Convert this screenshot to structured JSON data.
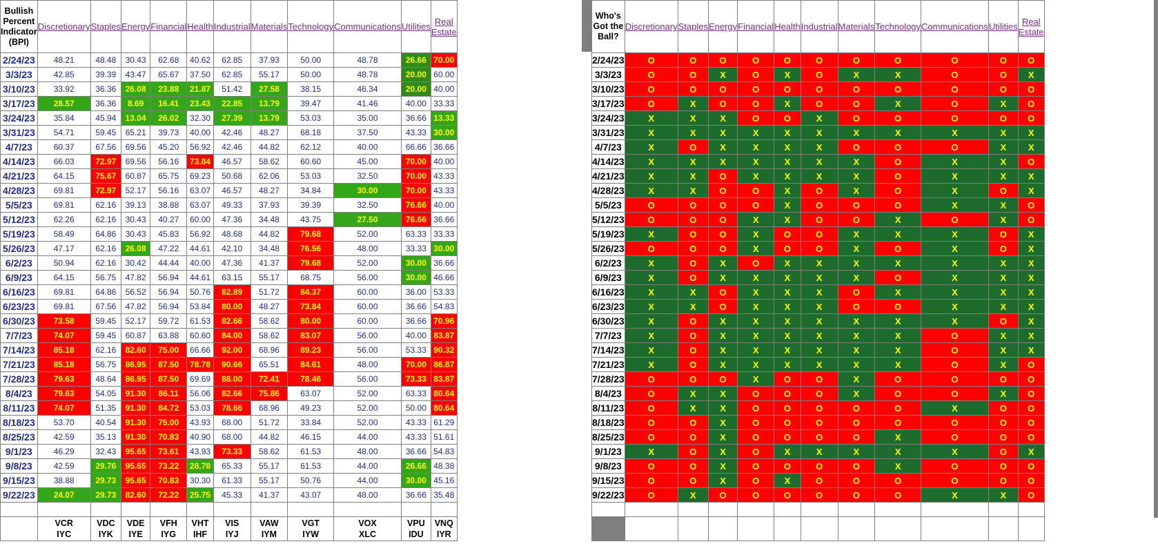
{
  "left": {
    "corner": "Bullish Percent Indicator (BPI)",
    "headers": [
      "Discretionary",
      "Staples",
      "Energy",
      "Financial",
      "Health",
      "Industrial",
      "Materials",
      "Technology",
      "Communications",
      "Utilities",
      "Real Estate"
    ],
    "widths": [
      81,
      87,
      64,
      65,
      60,
      64,
      65,
      75,
      112,
      60,
      55
    ],
    "date_width": 80,
    "tickers1": [
      "VCR",
      "VDC",
      "VDE",
      "VFH",
      "VHT",
      "VIS",
      "VAW",
      "VGT",
      "VOX",
      "VPU",
      "VNQ"
    ],
    "tickers2": [
      "IYC",
      "IYK",
      "IYE",
      "IYG",
      "IHF",
      "IYJ",
      "IYM",
      "IYW",
      "XLC",
      "IDU",
      "IYR"
    ],
    "rows": [
      {
        "d": "2/24/23",
        "v": [
          "48.21",
          "48.48",
          "30.43",
          "62.68",
          "40.62",
          "62.85",
          "37.93",
          "50.00",
          "48.78",
          "26.66",
          "70.00"
        ],
        "c": [
          "",
          "",
          "",
          "",
          "",
          "",
          "",
          "",
          "",
          "g",
          "r"
        ]
      },
      {
        "d": "3/3/23",
        "v": [
          "42.85",
          "39.39",
          "43.47",
          "65.67",
          "37.50",
          "62.85",
          "55.17",
          "50.00",
          "48.78",
          "20.00",
          "60.00"
        ],
        "c": [
          "",
          "",
          "",
          "",
          "",
          "",
          "",
          "",
          "",
          "g",
          ""
        ]
      },
      {
        "d": "3/10/23",
        "v": [
          "33.92",
          "36.36",
          "26.08",
          "23.88",
          "21.87",
          "51.42",
          "27.58",
          "38.15",
          "46.34",
          "20.00",
          "40.00"
        ],
        "c": [
          "",
          "",
          "lg",
          "lg",
          "lg",
          "",
          "lg",
          "",
          "",
          "g",
          ""
        ]
      },
      {
        "d": "3/17/23",
        "v": [
          "28.57",
          "36.36",
          "8.69",
          "16.41",
          "23.43",
          "22.85",
          "13.79",
          "39.47",
          "41.46",
          "40.00",
          "33.33"
        ],
        "c": [
          "lg",
          "",
          "lg",
          "lg",
          "lg",
          "lg",
          "lg",
          "",
          "",
          "",
          ""
        ]
      },
      {
        "d": "3/24/23",
        "v": [
          "35.84",
          "45.94",
          "13.04",
          "26.02",
          "32.30",
          "27.39",
          "13.79",
          "53.03",
          "35.00",
          "36.66",
          "13.33"
        ],
        "c": [
          "",
          "",
          "lg",
          "lg",
          "",
          "lg",
          "lg",
          "",
          "",
          "",
          "lg"
        ]
      },
      {
        "d": "3/31/23",
        "v": [
          "54.71",
          "59.45",
          "65.21",
          "39.73",
          "40.00",
          "42.46",
          "48.27",
          "68.18",
          "37.50",
          "43.33",
          "30.00"
        ],
        "c": [
          "",
          "",
          "",
          "",
          "",
          "",
          "",
          "",
          "",
          "",
          "lg"
        ]
      },
      {
        "d": "4/7/23",
        "v": [
          "60.37",
          "67.56",
          "69.56",
          "45.20",
          "56.92",
          "42.46",
          "44.82",
          "62.12",
          "40.00",
          "66.66",
          "36.66"
        ],
        "c": [
          "",
          "",
          "",
          "",
          "",
          "",
          "",
          "",
          "",
          "",
          ""
        ]
      },
      {
        "d": "4/14/23",
        "v": [
          "66.03",
          "72.97",
          "69.56",
          "56.16",
          "73.84",
          "46.57",
          "58.62",
          "60.60",
          "45.00",
          "70.00",
          "40.00"
        ],
        "c": [
          "",
          "r",
          "",
          "",
          "r",
          "",
          "",
          "",
          "",
          "r",
          ""
        ]
      },
      {
        "d": "4/21/23",
        "v": [
          "64.15",
          "75.67",
          "60.87",
          "65.75",
          "69.23",
          "50.68",
          "62.06",
          "53.03",
          "32.50",
          "70.00",
          "43.33"
        ],
        "c": [
          "",
          "r",
          "",
          "",
          "",
          "",
          "",
          "",
          "",
          "r",
          ""
        ]
      },
      {
        "d": "4/28/23",
        "v": [
          "69.81",
          "72.97",
          "52.17",
          "56.16",
          "63.07",
          "46.57",
          "48.27",
          "34.84",
          "30.00",
          "70.00",
          "43.33"
        ],
        "c": [
          "",
          "r",
          "",
          "",
          "",
          "",
          "",
          "",
          "lg",
          "r",
          ""
        ]
      },
      {
        "d": "5/5/23",
        "v": [
          "69.81",
          "62.16",
          "39.13",
          "38.88",
          "63.07",
          "49.33",
          "37.93",
          "39.39",
          "32.50",
          "76.66",
          "40.00"
        ],
        "c": [
          "",
          "",
          "",
          "",
          "",
          "",
          "",
          "",
          "",
          "r",
          ""
        ]
      },
      {
        "d": "5/12/23",
        "v": [
          "62.26",
          "62.16",
          "30.43",
          "40.27",
          "60.00",
          "47.36",
          "34.48",
          "43.75",
          "27.50",
          "76.66",
          "36.66"
        ],
        "c": [
          "",
          "",
          "",
          "",
          "",
          "",
          "",
          "",
          "lg",
          "r",
          ""
        ]
      },
      {
        "d": "5/19/23",
        "v": [
          "58.49",
          "64.86",
          "30.43",
          "45.83",
          "56.92",
          "48.68",
          "44.82",
          "79.68",
          "52.00",
          "63.33",
          "33.33"
        ],
        "c": [
          "",
          "",
          "",
          "",
          "",
          "",
          "",
          "r",
          "",
          "",
          ""
        ]
      },
      {
        "d": "5/26/23",
        "v": [
          "47.17",
          "62.16",
          "26.08",
          "47.22",
          "44.61",
          "42.10",
          "34.48",
          "76.56",
          "48.00",
          "33.33",
          "30.00"
        ],
        "c": [
          "",
          "",
          "lg",
          "",
          "",
          "",
          "",
          "r",
          "",
          "",
          "lg"
        ]
      },
      {
        "d": "6/2/23",
        "v": [
          "50.94",
          "62.16",
          "30.42",
          "44.44",
          "40.00",
          "47.36",
          "41.37",
          "79.68",
          "52.00",
          "30.00",
          "36.66"
        ],
        "c": [
          "",
          "",
          "",
          "",
          "",
          "",
          "",
          "r",
          "",
          "lg",
          ""
        ]
      },
      {
        "d": "6/9/23",
        "v": [
          "64.15",
          "56.75",
          "47.82",
          "56.94",
          "44.61",
          "63.15",
          "55.17",
          "68.75",
          "56.00",
          "30.00",
          "46.66"
        ],
        "c": [
          "",
          "",
          "",
          "",
          "",
          "",
          "",
          "",
          "",
          "lg",
          ""
        ]
      },
      {
        "d": "6/16/23",
        "v": [
          "69.81",
          "64.86",
          "56.52",
          "56.94",
          "50.76",
          "82.89",
          "51.72",
          "84.37",
          "60.00",
          "36.00",
          "53.33"
        ],
        "c": [
          "",
          "",
          "",
          "",
          "",
          "r",
          "",
          "r",
          "",
          "",
          ""
        ]
      },
      {
        "d": "6/23/23",
        "v": [
          "69.81",
          "67.56",
          "47.82",
          "56.94",
          "53.84",
          "80.00",
          "48.27",
          "73.84",
          "60.00",
          "36.66",
          "54.83"
        ],
        "c": [
          "",
          "",
          "",
          "",
          "",
          "r",
          "",
          "r",
          "",
          "",
          ""
        ]
      },
      {
        "d": "6/30/23",
        "v": [
          "73.58",
          "59.45",
          "52.17",
          "59.72",
          "61.53",
          "82.66",
          "58.62",
          "80.00",
          "60.00",
          "36.66",
          "70.96"
        ],
        "c": [
          "r",
          "",
          "",
          "",
          "",
          "r",
          "",
          "r",
          "",
          "",
          "r"
        ]
      },
      {
        "d": "7/7/23",
        "v": [
          "74.07",
          "59.45",
          "60.87",
          "63.88",
          "60.60",
          "84.00",
          "58.62",
          "83.07",
          "56.00",
          "40.00",
          "83.87"
        ],
        "c": [
          "r",
          "",
          "",
          "",
          "",
          "r",
          "",
          "r",
          "",
          "",
          "r"
        ]
      },
      {
        "d": "7/14/23",
        "v": [
          "85.18",
          "62.16",
          "82.60",
          "75.00",
          "66.66",
          "92.00",
          "68.96",
          "89.23",
          "56.00",
          "53.33",
          "90.32"
        ],
        "c": [
          "r",
          "",
          "r",
          "r",
          "",
          "r",
          "",
          "r",
          "",
          "",
          "r"
        ]
      },
      {
        "d": "7/21/23",
        "v": [
          "85.18",
          "56.75",
          "86.95",
          "87.50",
          "78.78",
          "90.66",
          "65.51",
          "84.61",
          "48.00",
          "70.00",
          "86.87"
        ],
        "c": [
          "r",
          "",
          "r",
          "r",
          "r",
          "r",
          "",
          "r",
          "",
          "r",
          "r"
        ]
      },
      {
        "d": "7/28/23",
        "v": [
          "79.63",
          "48.64",
          "86.95",
          "87.50",
          "69.69",
          "88.00",
          "72.41",
          "78.46",
          "56.00",
          "73.33",
          "83.87"
        ],
        "c": [
          "r",
          "",
          "r",
          "r",
          "",
          "r",
          "r",
          "r",
          "",
          "r",
          "r"
        ]
      },
      {
        "d": "8/4/23",
        "v": [
          "79.63",
          "54.05",
          "91.30",
          "86.11",
          "56.06",
          "82.66",
          "75.86",
          "63.07",
          "52.00",
          "63.33",
          "80.64"
        ],
        "c": [
          "r",
          "",
          "r",
          "r",
          "",
          "r",
          "r",
          "",
          "",
          "",
          "r"
        ]
      },
      {
        "d": "8/11/23",
        "v": [
          "74.07",
          "51.35",
          "91.30",
          "84.72",
          "53.03",
          "78.66",
          "68.96",
          "49.23",
          "52.00",
          "50.00",
          "80.64"
        ],
        "c": [
          "r",
          "",
          "r",
          "r",
          "",
          "r",
          "",
          "",
          "",
          "",
          "r"
        ]
      },
      {
        "d": "8/18/23",
        "v": [
          "53.70",
          "40.54",
          "91.30",
          "75.00",
          "43.93",
          "68.00",
          "51.72",
          "33.84",
          "52.00",
          "43.33",
          "61.29"
        ],
        "c": [
          "",
          "",
          "r",
          "r",
          "",
          "",
          "",
          "",
          "",
          "",
          ""
        ]
      },
      {
        "d": "8/25/23",
        "v": [
          "42.59",
          "35.13",
          "91.30",
          "70.83",
          "40.90",
          "68.00",
          "44.82",
          "46.15",
          "44.00",
          "43.33",
          "51.61"
        ],
        "c": [
          "",
          "",
          "r",
          "r",
          "",
          "",
          "",
          "",
          "",
          "",
          ""
        ]
      },
      {
        "d": "9/1/23",
        "v": [
          "46.29",
          "32.43",
          "95.65",
          "73.61",
          "43.93",
          "73.33",
          "58.62",
          "61.53",
          "48.00",
          "36.66",
          "54.83"
        ],
        "c": [
          "",
          "",
          "r",
          "r",
          "",
          "r",
          "",
          "",
          "",
          "",
          ""
        ]
      },
      {
        "d": "9/8/23",
        "v": [
          "42.59",
          "29.76",
          "95.65",
          "73.22",
          "28.78",
          "65.33",
          "55.17",
          "61.53",
          "44.00",
          "26.66",
          "48.38"
        ],
        "c": [
          "",
          "lg",
          "r",
          "r",
          "lg",
          "",
          "",
          "",
          "",
          "lg",
          ""
        ]
      },
      {
        "d": "9/15/23",
        "v": [
          "38.88",
          "29.73",
          "95.65",
          "70.83",
          "30.30",
          "61.33",
          "55.17",
          "50.76",
          "44.00",
          "30.00",
          "45.16"
        ],
        "c": [
          "",
          "lg",
          "r",
          "r",
          "",
          "",
          "",
          "",
          "",
          "lg",
          ""
        ]
      },
      {
        "d": "9/22/23",
        "v": [
          "24.07",
          "29.73",
          "82.60",
          "72.22",
          "25.75",
          "45.33",
          "41.37",
          "43.07",
          "48.00",
          "36.66",
          "35.48"
        ],
        "c": [
          "lg",
          "lg",
          "r",
          "r",
          "lg",
          "",
          "",
          "",
          "",
          "",
          ""
        ]
      }
    ]
  },
  "right": {
    "corner": "Who's Got the Ball?",
    "headers": [
      "Discretionary",
      "Staples",
      "Energy",
      "Financial",
      "Health",
      "Industrial",
      "Materials",
      "Technology",
      "Communications",
      "Utilities",
      "Real Estate"
    ],
    "widths": [
      88,
      56,
      54,
      59,
      44,
      63,
      65,
      77,
      110,
      51,
      44
    ],
    "date_width": 82,
    "rows": [
      {
        "d": "2/24/23",
        "s": "OOOOOOOOOOO"
      },
      {
        "d": "3/3/23",
        "s": "OOXOXOXXOOX"
      },
      {
        "d": "3/10/23",
        "s": "OOOOOOOOOOO"
      },
      {
        "d": "3/17/23",
        "s": "OXOOXOOXOXO"
      },
      {
        "d": "3/24/23",
        "s": "XXXOOXOOOOO"
      },
      {
        "d": "3/31/23",
        "s": "XXXXXXXXXXX"
      },
      {
        "d": "4/7/23",
        "s": "XOXXXXOOOXX"
      },
      {
        "d": "4/14/23",
        "s": "XXXXXXXOXXO"
      },
      {
        "d": "4/21/23",
        "s": "XXOXXXXOXXX"
      },
      {
        "d": "4/28/23",
        "s": "XXOOXOXOXOX"
      },
      {
        "d": "5/5/23",
        "s": "OOOOXOOOXXO"
      },
      {
        "d": "5/12/23",
        "s": "OOOXXOOXOXO"
      },
      {
        "d": "5/19/23",
        "s": "XOOXOOXXXOX"
      },
      {
        "d": "5/26/23",
        "s": "OOOXOOXOXOX"
      },
      {
        "d": "6/2/23",
        "s": "XOXOXXXXXXX"
      },
      {
        "d": "6/9/23",
        "s": "XOXXXXXOXXX"
      },
      {
        "d": "6/16/23",
        "s": "XXOXXXOXXXX"
      },
      {
        "d": "6/23/23",
        "s": "XXOXXXOOXXX"
      },
      {
        "d": "6/30/23",
        "s": "XOXXXXXXXOX"
      },
      {
        "d": "7/7/23",
        "s": "XOXXXXXXOXX"
      },
      {
        "d": "7/14/23",
        "s": "XOXXXXXXOXX"
      },
      {
        "d": "7/21/23",
        "s": "XOXXXXXXOXO"
      },
      {
        "d": "7/28/23",
        "s": "OOOXOOXOOOO"
      },
      {
        "d": "8/4/23",
        "s": "OXXOOOXOOXO"
      },
      {
        "d": "8/11/23",
        "s": "OXXOOOOOXOO"
      },
      {
        "d": "8/18/23",
        "s": "OOXOOOOOOOO"
      },
      {
        "d": "8/25/23",
        "s": "OOXOOOOXOOO"
      },
      {
        "d": "9/1/23",
        "s": "XOXOXXXXXOX"
      },
      {
        "d": "9/8/23",
        "s": "OOXOOOOXOOO"
      },
      {
        "d": "9/15/23",
        "s": "OOXOXOOOOOO"
      },
      {
        "d": "9/22/23",
        "s": "OXOOOOOOXXO"
      }
    ]
  }
}
